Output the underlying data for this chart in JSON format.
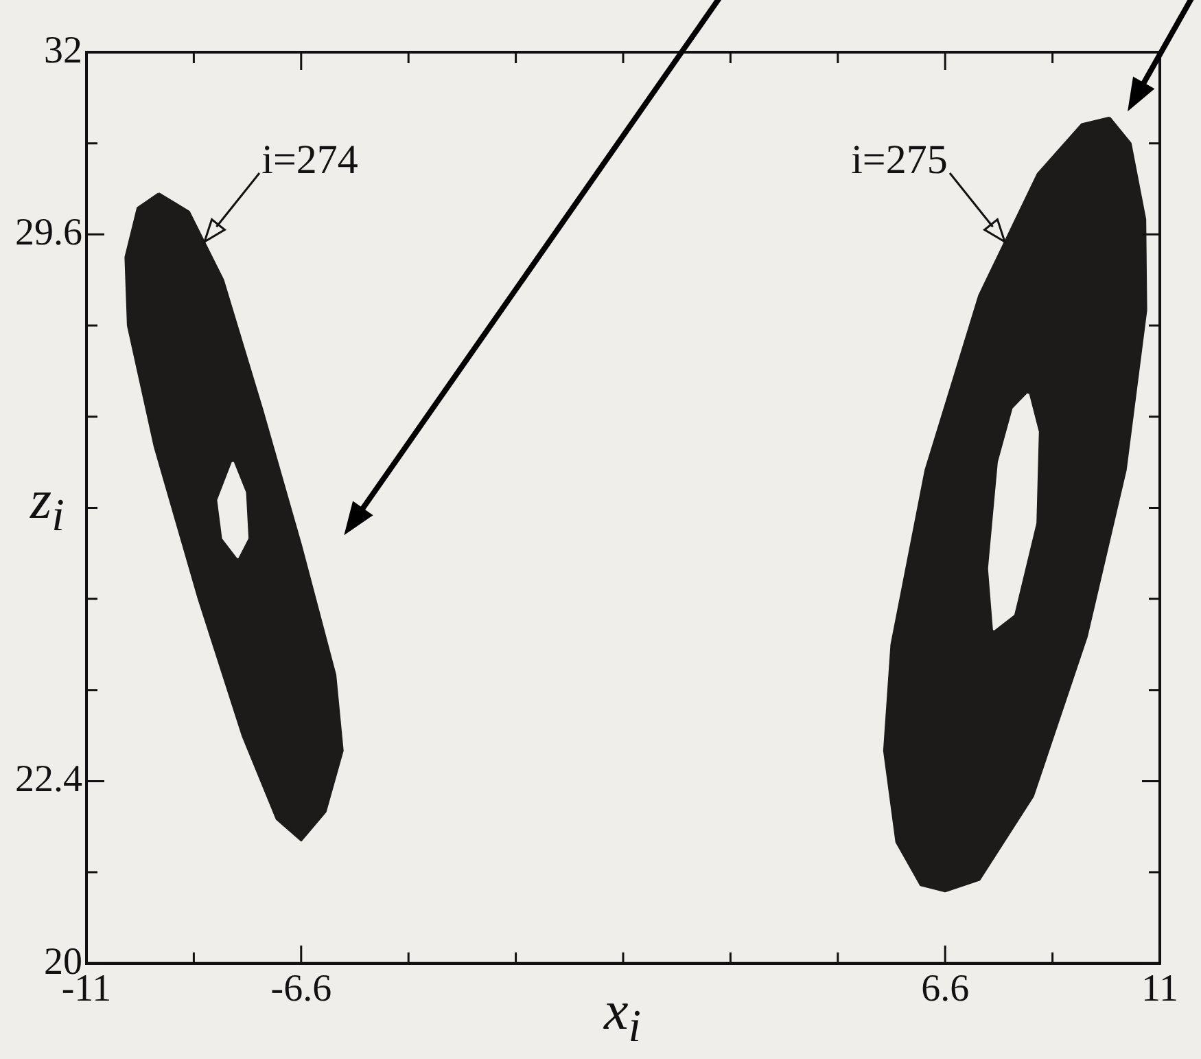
{
  "chart_data": {
    "type": "area",
    "xlabel": "x$_{i}$",
    "ylabel": "z$_{i}$",
    "xlim": [
      -11,
      11
    ],
    "ylim": [
      20,
      32
    ],
    "xticks": [
      -11,
      {
        "value": -8.8,
        "label": null
      },
      -6.6,
      {
        "value": -4.4,
        "label": null
      },
      {
        "value": -2.2,
        "label": null
      },
      {
        "value": 0,
        "label": null
      },
      {
        "value": 2.2,
        "label": null
      },
      {
        "value": 4.4,
        "label": null
      },
      6.6,
      {
        "value": 8.8,
        "label": null
      },
      11
    ],
    "yticks": [
      20,
      {
        "value": 21.2,
        "label": null
      },
      22.4,
      {
        "value": 23.6,
        "label": null
      },
      {
        "value": 24.8,
        "label": null
      },
      {
        "value": 26,
        "label": null
      },
      {
        "value": 27.2,
        "label": null
      },
      {
        "value": 28.4,
        "label": null
      },
      29.6,
      {
        "value": 30.8,
        "label": null
      },
      32
    ],
    "grid": false,
    "legend": false,
    "series": [
      {
        "color": "#1c1b1a",
        "x": [
          -9.52,
          -8.9,
          -8.2,
          -7.4,
          -6.6,
          -5.9,
          -5.75,
          -6.1,
          -6.6,
          -7.1,
          -7.8,
          -8.7,
          -9.6,
          -10.15,
          -10.2,
          -9.95,
          -9.52
        ],
        "values": [
          30.14,
          29.9,
          29.0,
          27.3,
          25.5,
          23.8,
          22.8,
          22.0,
          21.62,
          21.9,
          23.0,
          24.8,
          26.8,
          28.4,
          29.3,
          29.95,
          30.14
        ]
      },
      {
        "color": "#efeeea",
        "x": [
          -8.0,
          -7.75,
          -7.7,
          -7.9,
          -8.2,
          -8.3,
          -8.0
        ],
        "values": [
          26.6,
          26.2,
          25.6,
          25.35,
          25.6,
          26.1,
          26.6
        ]
      },
      {
        "color": "#1c1b1a",
        "x": [
          9.97,
          10.4,
          10.7,
          10.72,
          10.3,
          9.5,
          8.4,
          7.3,
          6.6,
          6.1,
          5.6,
          5.35,
          5.5,
          6.2,
          7.3,
          8.5,
          9.4,
          9.97
        ],
        "values": [
          31.14,
          30.8,
          29.8,
          28.6,
          26.5,
          24.3,
          22.2,
          21.1,
          20.95,
          21.03,
          21.6,
          22.8,
          24.2,
          26.5,
          28.8,
          30.4,
          31.05,
          31.14
        ]
      },
      {
        "color": "#efeeea",
        "x": [
          8.3,
          8.5,
          8.45,
          8.0,
          7.6,
          7.5,
          7.7,
          8.0,
          8.3
        ],
        "values": [
          27.5,
          27.0,
          25.8,
          24.6,
          24.4,
          25.2,
          26.6,
          27.3,
          27.5
        ]
      }
    ],
    "annotations": [
      {
        "text": "i=274",
        "x": -8.59,
        "y": 29.5
      },
      {
        "text": "i=275",
        "x": 7.83,
        "y": 29.5
      }
    ]
  }
}
